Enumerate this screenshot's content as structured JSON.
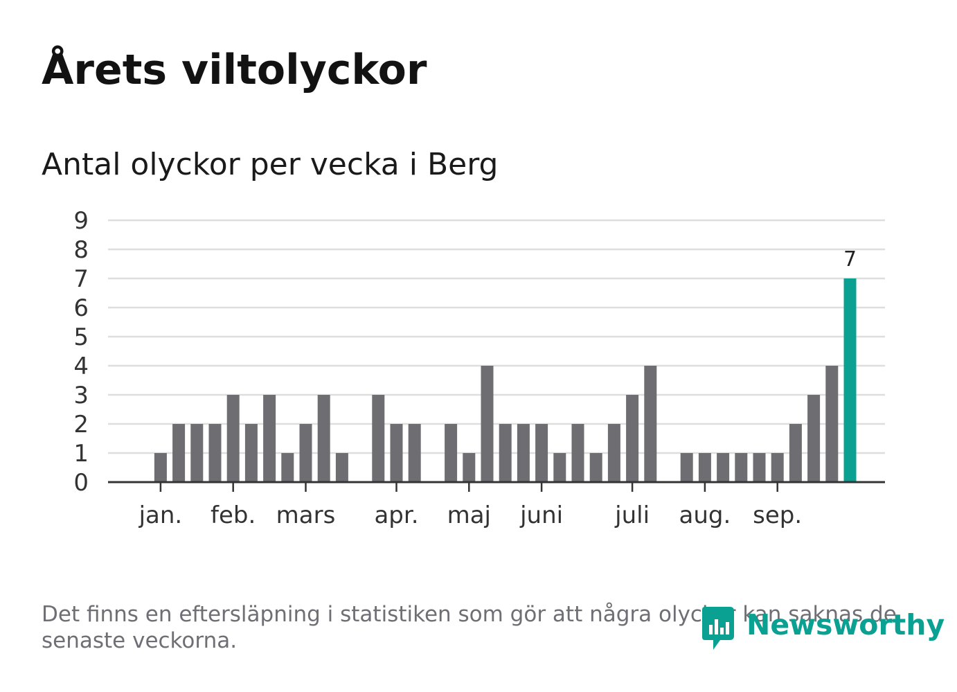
{
  "header": {
    "title": "Årets viltolyckor",
    "subtitle": "Antal olyckor per vecka i Berg"
  },
  "chart_data": {
    "type": "bar",
    "title": "Årets viltolyckor",
    "subtitle": "Antal olyckor per vecka i Berg",
    "xlabel": "",
    "ylabel": "",
    "ylim": [
      0,
      9
    ],
    "yticks": [
      0,
      1,
      2,
      3,
      4,
      5,
      6,
      7,
      8,
      9
    ],
    "grid": true,
    "week_slots": 41,
    "values": [
      0,
      0,
      1,
      2,
      2,
      2,
      3,
      2,
      3,
      1,
      2,
      3,
      1,
      0,
      3,
      2,
      2,
      0,
      2,
      1,
      4,
      2,
      2,
      2,
      1,
      2,
      1,
      2,
      3,
      4,
      0,
      1,
      1,
      1,
      1,
      1,
      1,
      2,
      3,
      4,
      7
    ],
    "month_labels": [
      {
        "label": "jan.",
        "week": 2
      },
      {
        "label": "feb.",
        "week": 6
      },
      {
        "label": "mars",
        "week": 10
      },
      {
        "label": "apr.",
        "week": 15
      },
      {
        "label": "maj",
        "week": 19
      },
      {
        "label": "juni",
        "week": 23
      },
      {
        "label": "juli",
        "week": 28
      },
      {
        "label": "aug.",
        "week": 32
      },
      {
        "label": "sep.",
        "week": 36
      }
    ],
    "highlight_index": 40,
    "highlight_label": "7",
    "colors": {
      "bar": "#6e6d72",
      "highlight": "#0aa192",
      "grid": "#dedede",
      "axis": "#333333"
    }
  },
  "footer": {
    "note": "Det finns en eftersläpning i statistiken som gör att några olyckor kan saknas de senaste veckorna.",
    "brand": "Newsworthy",
    "brand_icon": "newsworthy-logo-icon"
  }
}
